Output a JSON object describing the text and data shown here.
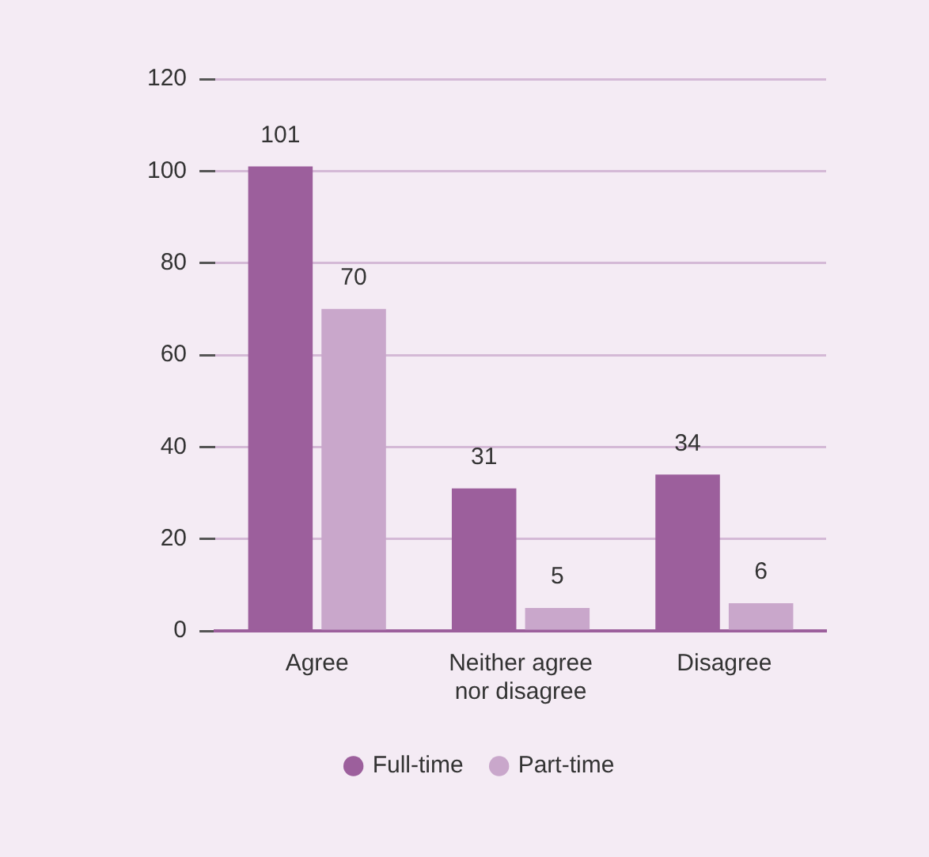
{
  "chart_data": {
    "type": "bar",
    "categories": [
      "Agree",
      "Neither agree nor disagree",
      "Disagree"
    ],
    "series": [
      {
        "name": "Full-time",
        "color": "#9c5f9c",
        "values": [
          101,
          31,
          34
        ]
      },
      {
        "name": "Part-time",
        "color": "#c9a7cb",
        "values": [
          70,
          5,
          6
        ]
      }
    ],
    "ylim": [
      0,
      120
    ],
    "yticks": [
      0,
      20,
      40,
      60,
      80,
      100,
      120
    ],
    "grid": "y",
    "legend": "bottom",
    "data_labels": true
  }
}
